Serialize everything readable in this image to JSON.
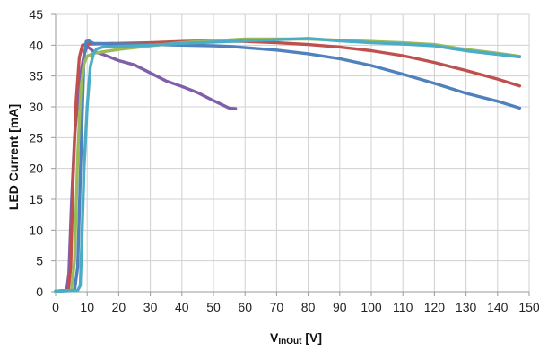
{
  "chart_data": {
    "type": "line",
    "title": "",
    "xlabel_main": "V",
    "xlabel_sub": "InOut",
    "xlabel_unit": " [V]",
    "ylabel": "LED Current [mA]",
    "xlim": [
      0,
      150
    ],
    "ylim": [
      0,
      45
    ],
    "xticks": [
      0,
      10,
      20,
      30,
      40,
      50,
      60,
      70,
      80,
      90,
      100,
      110,
      120,
      130,
      140,
      150
    ],
    "yticks": [
      0,
      5,
      10,
      15,
      20,
      25,
      30,
      35,
      40,
      45
    ],
    "grid": true,
    "legend": "none",
    "series": [
      {
        "color": "#7f5fa8",
        "points": [
          [
            0,
            0.1
          ],
          [
            3.5,
            0.2
          ],
          [
            4.2,
            3
          ],
          [
            5,
            14
          ],
          [
            6,
            25
          ],
          [
            7,
            31
          ],
          [
            8,
            35.5
          ],
          [
            9,
            38.5
          ],
          [
            10,
            39.8
          ],
          [
            12,
            39
          ],
          [
            15,
            38.5
          ],
          [
            20,
            37.5
          ],
          [
            25,
            36.8
          ],
          [
            30,
            35.5
          ],
          [
            35,
            34.2
          ],
          [
            40,
            33.3
          ],
          [
            45,
            32.3
          ],
          [
            50,
            31
          ],
          [
            55,
            29.8
          ],
          [
            57,
            29.7
          ]
        ]
      },
      {
        "color": "#c0504d",
        "points": [
          [
            0,
            0.1
          ],
          [
            4,
            0.2
          ],
          [
            4.8,
            4
          ],
          [
            5.5,
            18
          ],
          [
            6.5,
            31
          ],
          [
            7.5,
            38
          ],
          [
            8.5,
            40
          ],
          [
            10,
            40.2
          ],
          [
            20,
            40.3
          ],
          [
            30,
            40.4
          ],
          [
            40,
            40.6
          ],
          [
            50,
            40.7
          ],
          [
            60,
            40.6
          ],
          [
            70,
            40.4
          ],
          [
            80,
            40.1
          ],
          [
            90,
            39.7
          ],
          [
            100,
            39.1
          ],
          [
            110,
            38.3
          ],
          [
            120,
            37.2
          ],
          [
            130,
            35.9
          ],
          [
            140,
            34.5
          ],
          [
            147,
            33.4
          ]
        ]
      },
      {
        "color": "#4f81bd",
        "points": [
          [
            0,
            0.1
          ],
          [
            6,
            0.2
          ],
          [
            7,
            4
          ],
          [
            8,
            22
          ],
          [
            9,
            38
          ],
          [
            9.7,
            40.6
          ],
          [
            10.5,
            40.7
          ],
          [
            12,
            40.3
          ],
          [
            20,
            40.2
          ],
          [
            30,
            40.1
          ],
          [
            40,
            40
          ],
          [
            50,
            39.9
          ],
          [
            55,
            39.8
          ],
          [
            60,
            39.6
          ],
          [
            70,
            39.2
          ],
          [
            80,
            38.6
          ],
          [
            90,
            37.8
          ],
          [
            100,
            36.7
          ],
          [
            110,
            35.3
          ],
          [
            120,
            33.8
          ],
          [
            130,
            32.2
          ],
          [
            140,
            30.9
          ],
          [
            147,
            29.8
          ]
        ]
      },
      {
        "color": "#9bbb59",
        "points": [
          [
            0,
            0.1
          ],
          [
            5,
            0.2
          ],
          [
            6,
            5
          ],
          [
            7,
            22
          ],
          [
            8,
            33
          ],
          [
            9,
            37
          ],
          [
            10,
            38.2
          ],
          [
            12,
            38.7
          ],
          [
            20,
            39.3
          ],
          [
            30,
            39.9
          ],
          [
            40,
            40.4
          ],
          [
            50,
            40.7
          ],
          [
            60,
            41
          ],
          [
            70,
            41
          ],
          [
            80,
            41
          ],
          [
            90,
            40.8
          ],
          [
            100,
            40.6
          ],
          [
            110,
            40.4
          ],
          [
            120,
            40.1
          ],
          [
            130,
            39.3
          ],
          [
            140,
            38.7
          ],
          [
            147,
            38.2
          ]
        ]
      },
      {
        "color": "#4bacc6",
        "points": [
          [
            0,
            0.1
          ],
          [
            7,
            0.2
          ],
          [
            7.8,
            1
          ],
          [
            8.3,
            8
          ],
          [
            9,
            20
          ],
          [
            10,
            30
          ],
          [
            11,
            36.5
          ],
          [
            12,
            38.6
          ],
          [
            13,
            39.4
          ],
          [
            15,
            39.7
          ],
          [
            20,
            39.8
          ],
          [
            30,
            40
          ],
          [
            40,
            40.3
          ],
          [
            50,
            40.5
          ],
          [
            60,
            40.7
          ],
          [
            70,
            40.9
          ],
          [
            80,
            41.1
          ],
          [
            90,
            40.7
          ],
          [
            100,
            40.4
          ],
          [
            110,
            40.2
          ],
          [
            120,
            39.9
          ],
          [
            130,
            39.1
          ],
          [
            140,
            38.5
          ],
          [
            147,
            38.1
          ]
        ]
      }
    ]
  }
}
